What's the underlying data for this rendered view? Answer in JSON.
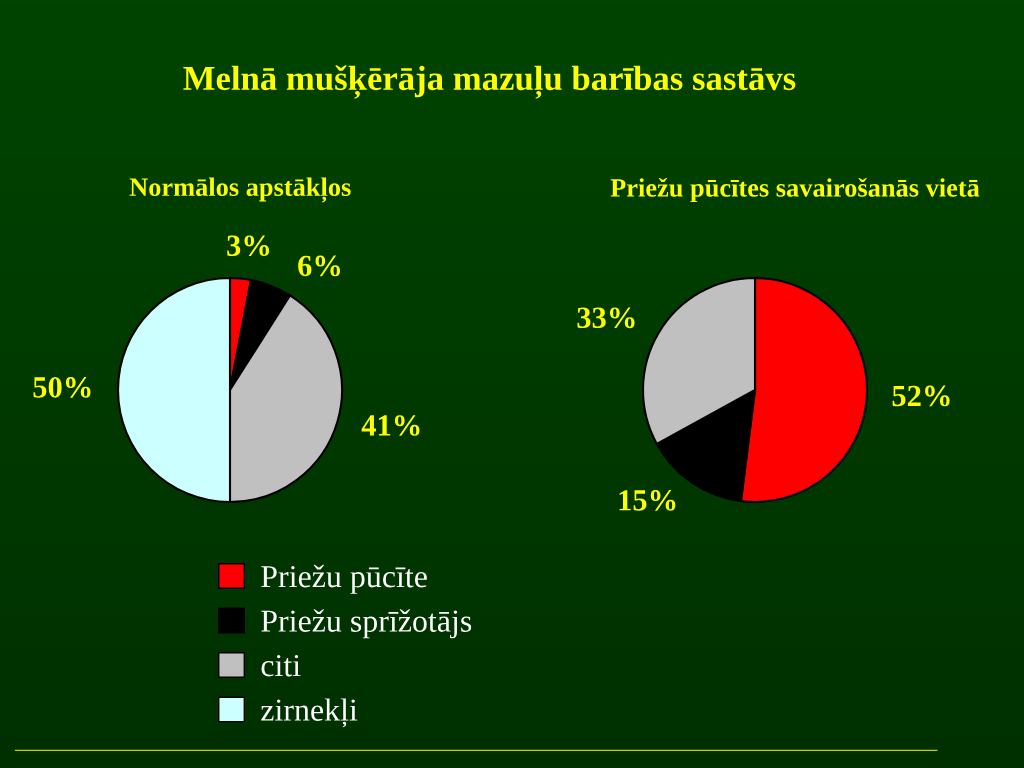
{
  "chart_data": [
    {
      "type": "pie",
      "title": "Melnā mušķērāja mazuļu barības sastāvs",
      "subtitle": "Normālos apstākļos",
      "categories": [
        "Priežu pūcīte",
        "Priežu sprīžotājs",
        "citi",
        "zirnekļi"
      ],
      "values": [
        3,
        6,
        41,
        50
      ],
      "value_labels": [
        "3%",
        "6%",
        "41%",
        "50%"
      ],
      "colors": [
        "#ff0000",
        "#000000",
        "#c0c0c0",
        "#ccffff"
      ],
      "legend": "bottom"
    },
    {
      "type": "pie",
      "title": "Priežu pūcītes savairošanās vietā",
      "categories": [
        null,
        null,
        null
      ],
      "values": [
        52,
        15,
        33
      ],
      "value_labels": [
        "52%",
        "15%",
        "33%"
      ],
      "colors": [
        "#ff0000",
        "#000000",
        "#c0c0c0"
      ],
      "legend": false
    }
  ]
}
